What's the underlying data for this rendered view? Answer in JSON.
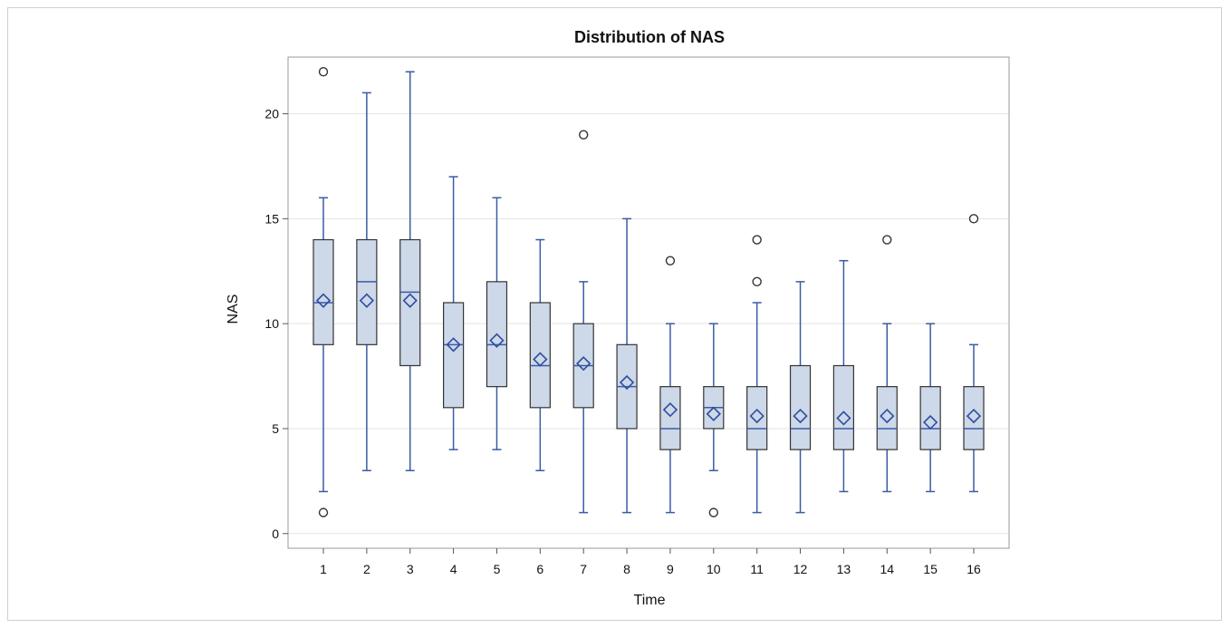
{
  "chart_data": {
    "type": "boxplot",
    "title": "Distribution of NAS",
    "xlabel": "Time",
    "ylabel": "NAS",
    "categories": [
      "1",
      "2",
      "3",
      "4",
      "5",
      "6",
      "7",
      "8",
      "9",
      "10",
      "11",
      "12",
      "13",
      "14",
      "15",
      "16"
    ],
    "yticks": [
      0,
      5,
      10,
      15,
      20
    ],
    "ylim": [
      -0.7,
      22.7
    ],
    "grid": "horizontal",
    "box_fill": "#cdd8e8",
    "box_stroke": "#333333",
    "whisker_color": "#3a5ba5",
    "mean_marker_color": "#2c4da0",
    "boxes": [
      {
        "category": "1",
        "min": 2,
        "q1": 9,
        "median": 11,
        "q3": 14,
        "max": 16,
        "mean": 11.1,
        "outliers": [
          22,
          1
        ]
      },
      {
        "category": "2",
        "min": 3,
        "q1": 9,
        "median": 12,
        "q3": 14,
        "max": 21,
        "mean": 11.1,
        "outliers": []
      },
      {
        "category": "3",
        "min": 3,
        "q1": 8,
        "median": 11.5,
        "q3": 14,
        "max": 22,
        "mean": 11.1,
        "outliers": []
      },
      {
        "category": "4",
        "min": 4,
        "q1": 6,
        "median": 9,
        "q3": 11,
        "max": 17,
        "mean": 9.0,
        "outliers": []
      },
      {
        "category": "5",
        "min": 4,
        "q1": 7,
        "median": 9,
        "q3": 12,
        "max": 16,
        "mean": 9.2,
        "outliers": []
      },
      {
        "category": "6",
        "min": 3,
        "q1": 6,
        "median": 8,
        "q3": 11,
        "max": 14,
        "mean": 8.3,
        "outliers": []
      },
      {
        "category": "7",
        "min": 1,
        "q1": 6,
        "median": 8,
        "q3": 10,
        "max": 12,
        "mean": 8.1,
        "outliers": [
          19
        ]
      },
      {
        "category": "8",
        "min": 1,
        "q1": 5,
        "median": 7,
        "q3": 9,
        "max": 15,
        "mean": 7.2,
        "outliers": []
      },
      {
        "category": "9",
        "min": 1,
        "q1": 4,
        "median": 5,
        "q3": 7,
        "max": 10,
        "mean": 5.9,
        "outliers": [
          13
        ]
      },
      {
        "category": "10",
        "min": 3,
        "q1": 5,
        "median": 6,
        "q3": 7,
        "max": 10,
        "mean": 5.7,
        "outliers": [
          1
        ]
      },
      {
        "category": "11",
        "min": 1,
        "q1": 4,
        "median": 5,
        "q3": 7,
        "max": 11,
        "mean": 5.6,
        "outliers": [
          12,
          14
        ]
      },
      {
        "category": "12",
        "min": 1,
        "q1": 4,
        "median": 5,
        "q3": 8,
        "max": 12,
        "mean": 5.6,
        "outliers": []
      },
      {
        "category": "13",
        "min": 2,
        "q1": 4,
        "median": 5,
        "q3": 8,
        "max": 13,
        "mean": 5.5,
        "outliers": []
      },
      {
        "category": "14",
        "min": 2,
        "q1": 4,
        "median": 5,
        "q3": 7,
        "max": 10,
        "mean": 5.6,
        "outliers": [
          14
        ]
      },
      {
        "category": "15",
        "min": 2,
        "q1": 4,
        "median": 5,
        "q3": 7,
        "max": 10,
        "mean": 5.3,
        "outliers": []
      },
      {
        "category": "16",
        "min": 2,
        "q1": 4,
        "median": 5,
        "q3": 7,
        "max": 9,
        "mean": 5.6,
        "outliers": [
          15
        ]
      }
    ]
  }
}
